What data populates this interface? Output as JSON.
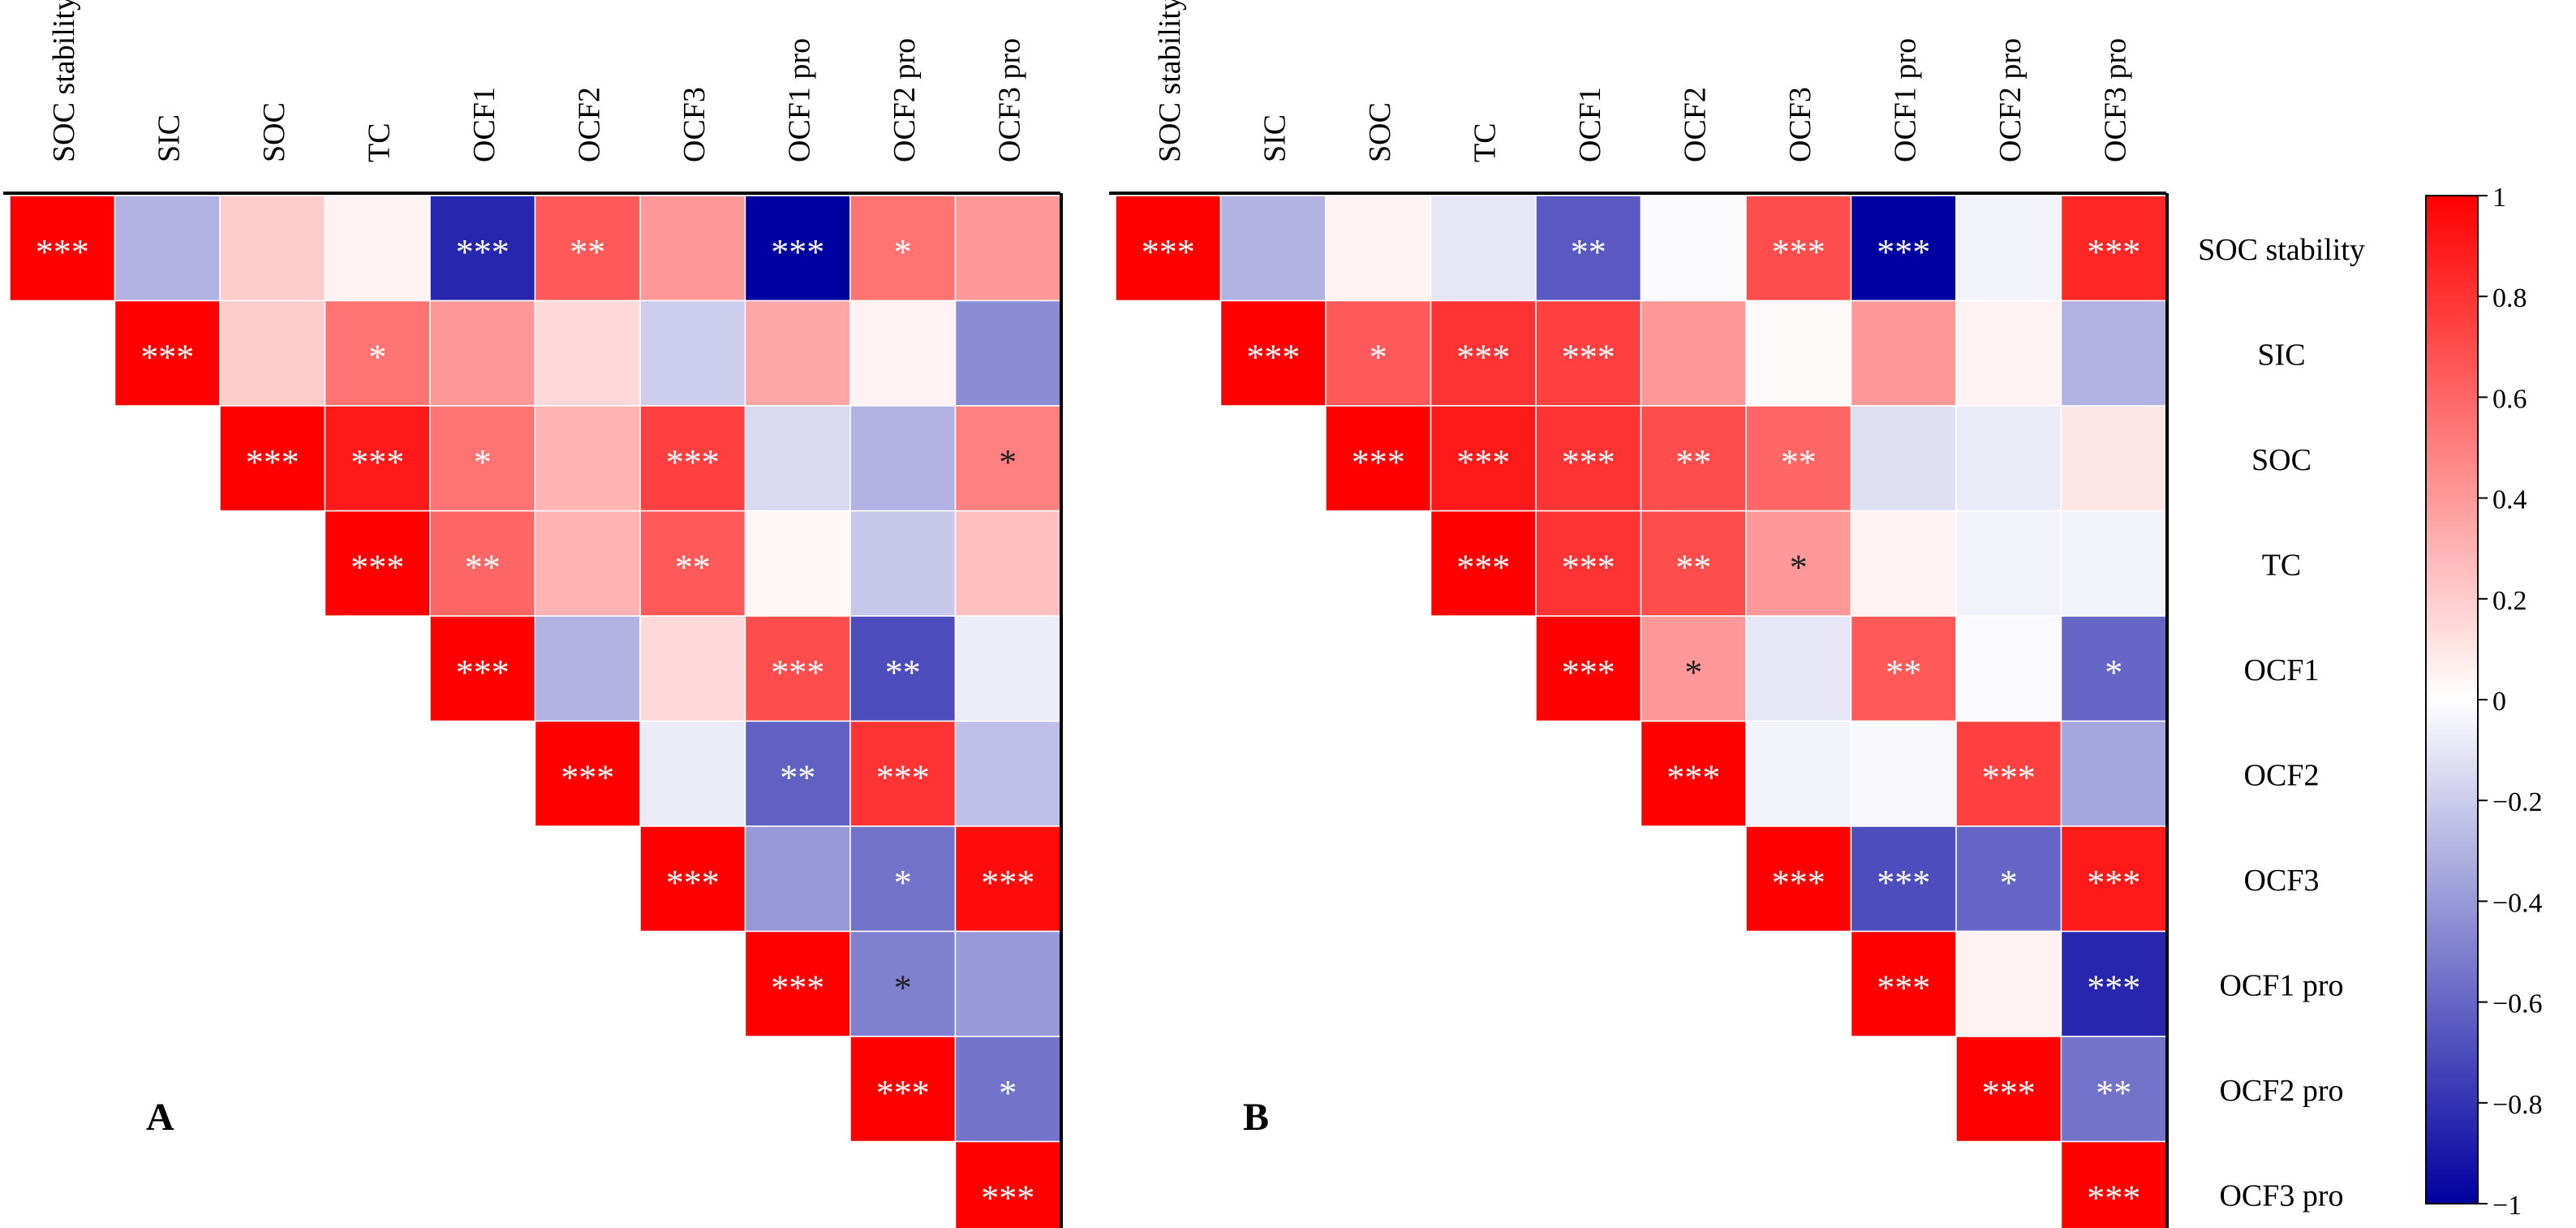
{
  "variables": [
    "SOC stability",
    "SIC",
    "SOC",
    "TC",
    "OCF1",
    "OCF2",
    "OCF3",
    "OCF1 pro",
    "OCF2 pro",
    "OCF3 pro"
  ],
  "panel_labels": [
    "A",
    "B"
  ],
  "colorbar": {
    "ticks": [
      "1",
      "0.8",
      "0.6",
      "0.4",
      "0.2",
      "0",
      "−0.2",
      "−0.4",
      "−0.6",
      "−0.8",
      "−1"
    ],
    "colors": {
      "negative": "#0000a0",
      "zero": "#ffffff",
      "positive": "#ff0000"
    },
    "range": [
      -1,
      1
    ]
  },
  "chart_data": [
    {
      "type": "heatmap",
      "panel": "A",
      "title": "",
      "variables": [
        "SOC stability",
        "SIC",
        "SOC",
        "TC",
        "OCF1",
        "OCF2",
        "OCF3",
        "OCF1 pro",
        "OCF2 pro",
        "OCF3 pro"
      ],
      "value_range": [
        -1,
        1
      ],
      "values": [
        [
          1,
          -0.3,
          0.2,
          0.05,
          -0.85,
          0.65,
          0.4,
          -1.0,
          0.55,
          0.4
        ],
        [
          null,
          1,
          0.2,
          0.55,
          0.4,
          0.15,
          -0.2,
          0.35,
          0.05,
          -0.45
        ],
        [
          null,
          null,
          1,
          0.9,
          0.55,
          0.3,
          0.75,
          -0.15,
          -0.3,
          0.5
        ],
        [
          null,
          null,
          null,
          1,
          0.6,
          0.3,
          0.65,
          0.03,
          -0.22,
          0.25
        ],
        [
          null,
          null,
          null,
          null,
          1,
          -0.3,
          0.15,
          0.7,
          -0.7,
          -0.07
        ],
        [
          null,
          null,
          null,
          null,
          null,
          1,
          -0.08,
          -0.62,
          0.8,
          -0.25
        ],
        [
          null,
          null,
          null,
          null,
          null,
          null,
          1,
          -0.4,
          -0.55,
          0.95
        ],
        [
          null,
          null,
          null,
          null,
          null,
          null,
          null,
          1,
          -0.5,
          -0.4
        ],
        [
          null,
          null,
          null,
          null,
          null,
          null,
          null,
          null,
          1,
          -0.55
        ],
        [
          null,
          null,
          null,
          null,
          null,
          null,
          null,
          null,
          null,
          1
        ]
      ],
      "stars": [
        [
          "***",
          "",
          "",
          "",
          "***",
          "**",
          "",
          "***",
          "*",
          ""
        ],
        [
          "",
          "***",
          "",
          "*",
          "",
          "",
          "",
          "",
          "",
          ""
        ],
        [
          "",
          "",
          "***",
          "***",
          "*",
          "",
          "***",
          "",
          "",
          "*"
        ],
        [
          "",
          "",
          "",
          "***",
          "**",
          "",
          "**",
          "",
          "",
          ""
        ],
        [
          "",
          "",
          "",
          "",
          "***",
          "",
          "",
          "***",
          "**",
          ""
        ],
        [
          "",
          "",
          "",
          "",
          "",
          "***",
          "",
          "**",
          "***",
          ""
        ],
        [
          "",
          "",
          "",
          "",
          "",
          "",
          "***",
          "",
          "*",
          "***"
        ],
        [
          "",
          "",
          "",
          "",
          "",
          "",
          "",
          "***",
          "*",
          ""
        ],
        [
          "",
          "",
          "",
          "",
          "",
          "",
          "",
          "",
          "***",
          "*"
        ],
        [
          "",
          "",
          "",
          "",
          "",
          "",
          "",
          "",
          "",
          "***"
        ]
      ]
    },
    {
      "type": "heatmap",
      "panel": "B",
      "title": "",
      "variables": [
        "SOC stability",
        "SIC",
        "SOC",
        "TC",
        "OCF1",
        "OCF2",
        "OCF3",
        "OCF1 pro",
        "OCF2 pro",
        "OCF3 pro"
      ],
      "value_range": [
        -1,
        1
      ],
      "values": [
        [
          1,
          -0.3,
          0.05,
          -0.1,
          -0.65,
          -0.02,
          0.7,
          -1.0,
          -0.05,
          0.85
        ],
        [
          null,
          1,
          0.65,
          0.8,
          0.75,
          0.4,
          0.02,
          0.4,
          0.05,
          -0.3
        ],
        [
          null,
          null,
          1,
          0.9,
          0.8,
          0.7,
          0.6,
          -0.12,
          -0.08,
          0.1
        ],
        [
          null,
          null,
          null,
          1,
          0.8,
          0.7,
          0.4,
          0.05,
          -0.05,
          -0.05
        ],
        [
          null,
          null,
          null,
          null,
          1,
          0.4,
          -0.1,
          0.65,
          -0.02,
          -0.6
        ],
        [
          null,
          null,
          null,
          null,
          null,
          1,
          -0.05,
          -0.03,
          0.75,
          -0.35
        ],
        [
          null,
          null,
          null,
          null,
          null,
          null,
          1,
          -0.7,
          -0.6,
          0.9
        ],
        [
          null,
          null,
          null,
          null,
          null,
          null,
          null,
          1,
          0.05,
          -0.85
        ],
        [
          null,
          null,
          null,
          null,
          null,
          null,
          null,
          null,
          1,
          -0.55
        ],
        [
          null,
          null,
          null,
          null,
          null,
          null,
          null,
          null,
          null,
          1
        ]
      ],
      "stars": [
        [
          "***",
          "",
          "",
          "",
          "**",
          "",
          "***",
          "***",
          "",
          "***"
        ],
        [
          "",
          "***",
          "*",
          "***",
          "***",
          "",
          "",
          "",
          "",
          ""
        ],
        [
          "",
          "",
          "***",
          "***",
          "***",
          "**",
          "**",
          "",
          "",
          ""
        ],
        [
          "",
          "",
          "",
          "***",
          "***",
          "**",
          "*",
          "",
          "",
          ""
        ],
        [
          "",
          "",
          "",
          "",
          "***",
          "*",
          "",
          "**",
          "",
          "*"
        ],
        [
          "",
          "",
          "",
          "",
          "",
          "***",
          "",
          "",
          "***",
          ""
        ],
        [
          "",
          "",
          "",
          "",
          "",
          "",
          "***",
          "***",
          "*",
          "***"
        ],
        [
          "",
          "",
          "",
          "",
          "",
          "",
          "",
          "***",
          "",
          "***"
        ],
        [
          "",
          "",
          "",
          "",
          "",
          "",
          "",
          "",
          "***",
          "**"
        ],
        [
          "",
          "",
          "",
          "",
          "",
          "",
          "",
          "",
          "",
          "***"
        ]
      ]
    }
  ]
}
